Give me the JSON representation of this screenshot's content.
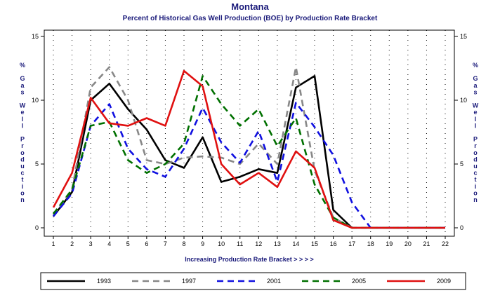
{
  "chart_data": {
    "type": "line",
    "title": "Montana",
    "subtitle": "Percent of Historical Gas Well Production (BOE) by Production Rate Bracket",
    "xlabel": "Increasing Production Rate Bracket > > > >",
    "ylabel": "% Gas Well Production",
    "x": [
      1,
      2,
      3,
      4,
      5,
      6,
      7,
      8,
      9,
      10,
      11,
      12,
      13,
      14,
      15,
      16,
      17,
      18,
      19,
      20,
      21,
      22
    ],
    "ylim": [
      0,
      15
    ],
    "yticks": [
      0,
      5,
      10,
      15
    ],
    "grid": "vertical dotted",
    "legend": "bottom",
    "series": [
      {
        "name": "1993",
        "color": "#000000",
        "dash": "solid",
        "values": [
          0.9,
          2.8,
          10.0,
          11.3,
          9.3,
          7.7,
          5.3,
          4.7,
          7.1,
          3.6,
          4.0,
          4.6,
          4.3,
          11.0,
          11.9,
          1.4,
          0,
          0,
          0,
          0,
          0,
          0
        ]
      },
      {
        "name": "1997",
        "color": "#888888",
        "dash": "dashed",
        "values": [
          1.0,
          3.0,
          11.0,
          12.6,
          10.0,
          5.3,
          5.0,
          5.5,
          5.6,
          5.5,
          5.0,
          6.6,
          5.0,
          12.6,
          4.5,
          0.8,
          0,
          0,
          0,
          0,
          0,
          0
        ]
      },
      {
        "name": "2001",
        "color": "#1010e0",
        "dash": "dashed",
        "values": [
          0.9,
          2.7,
          8.0,
          9.7,
          6.2,
          4.6,
          4.0,
          6.2,
          9.4,
          6.7,
          5.1,
          7.6,
          3.6,
          9.8,
          7.9,
          5.7,
          2.0,
          0,
          0,
          0,
          0,
          0
        ]
      },
      {
        "name": "2005",
        "color": "#007000",
        "dash": "dashed",
        "values": [
          1.1,
          3.0,
          8.0,
          8.3,
          5.3,
          4.3,
          5.0,
          6.6,
          11.9,
          9.7,
          8.0,
          9.3,
          6.4,
          8.6,
          3.4,
          0.8,
          0,
          0,
          0,
          0,
          0,
          0
        ]
      },
      {
        "name": "2009",
        "color": "#e01010",
        "dash": "solid",
        "values": [
          1.6,
          4.3,
          10.2,
          8.2,
          8.0,
          8.6,
          8.0,
          12.3,
          11.1,
          5.0,
          3.4,
          4.3,
          3.2,
          6.0,
          4.7,
          0.6,
          0,
          0,
          0,
          0,
          0,
          0
        ]
      }
    ]
  }
}
